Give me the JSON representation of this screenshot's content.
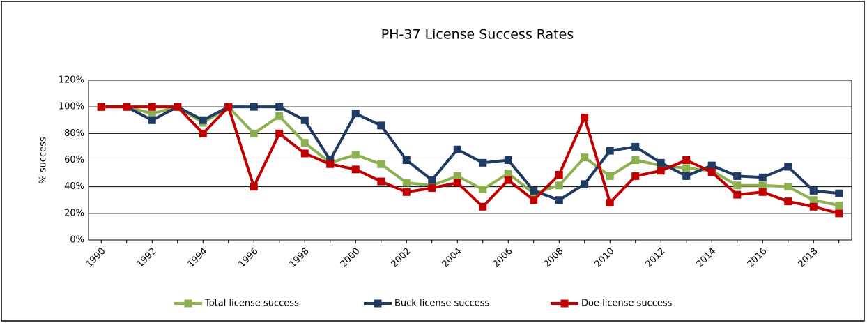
{
  "chart_data": {
    "type": "line",
    "title": "PH-37 License Success Rates",
    "y_label": "% success",
    "categories": [
      "1990",
      null,
      "1992",
      null,
      "1994",
      null,
      "1996",
      null,
      "1998",
      null,
      "2000",
      null,
      "2002",
      null,
      "2004",
      null,
      "2006",
      null,
      "2008",
      null,
      "2010",
      null,
      "2012",
      null,
      "2014",
      null,
      "2016",
      null,
      "2018",
      null
    ],
    "series": [
      {
        "name": "Total license success",
        "color": "#8db150",
        "values": [
          100,
          100,
          95,
          100,
          88,
          100,
          80,
          93,
          73,
          58,
          64,
          57,
          43,
          41,
          48,
          38,
          50,
          35,
          41,
          62,
          48,
          60,
          56,
          54,
          52,
          41,
          41,
          40,
          30,
          26
        ]
      },
      {
        "name": "Buck license success",
        "color": "#1f3b63",
        "values": [
          100,
          100,
          90,
          100,
          90,
          100,
          100,
          100,
          90,
          60,
          95,
          86,
          60,
          45,
          68,
          58,
          60,
          37,
          30,
          42,
          67,
          70,
          58,
          48,
          56,
          48,
          47,
          55,
          37,
          35
        ]
      },
      {
        "name": "Doe license success",
        "color": "#c00000",
        "values": [
          100,
          100,
          100,
          100,
          80,
          100,
          40,
          80,
          65,
          57,
          53,
          44,
          36,
          39,
          43,
          25,
          45,
          30,
          49,
          92,
          28,
          48,
          52,
          60,
          51,
          34,
          36,
          29,
          25,
          20
        ]
      }
    ],
    "ylim": [
      0,
      120
    ],
    "yticks": [
      {
        "value": 0,
        "label": "0%"
      },
      {
        "value": 20,
        "label": "20%"
      },
      {
        "value": 40,
        "label": "40%"
      },
      {
        "value": 60,
        "label": "60%"
      },
      {
        "value": 80,
        "label": "80%"
      },
      {
        "value": 100,
        "label": "100%"
      },
      {
        "value": 120,
        "label": "120%"
      }
    ],
    "grid": true,
    "legend": "bottom"
  }
}
